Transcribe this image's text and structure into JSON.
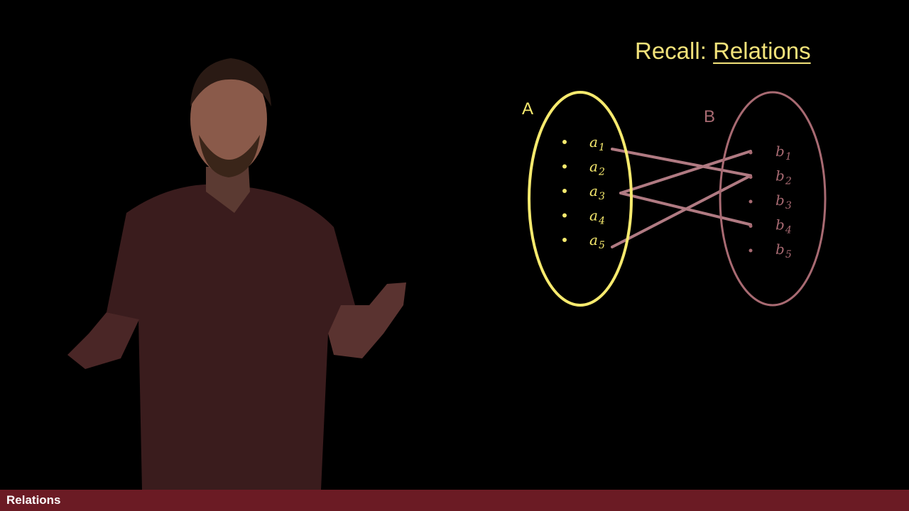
{
  "title": {
    "prefix": "Recall: ",
    "main": "Relations",
    "color": "#f2e27a"
  },
  "set_a": {
    "label": "A",
    "color": "#f7ea6e",
    "elements": [
      {
        "base": "a",
        "sub": "1"
      },
      {
        "base": "a",
        "sub": "2"
      },
      {
        "base": "a",
        "sub": "3"
      },
      {
        "base": "a",
        "sub": "4"
      },
      {
        "base": "a",
        "sub": "5"
      }
    ]
  },
  "set_b": {
    "label": "B",
    "color": "#a86a72",
    "elements": [
      {
        "base": "b",
        "sub": "1"
      },
      {
        "base": "b",
        "sub": "2"
      },
      {
        "base": "b",
        "sub": "3"
      },
      {
        "base": "b",
        "sub": "4"
      },
      {
        "base": "b",
        "sub": "5"
      }
    ]
  },
  "relation": {
    "color": "#b07a82",
    "pairs": [
      [
        "a1",
        "b2"
      ],
      [
        "a3",
        "b1"
      ],
      [
        "a3",
        "b4"
      ],
      [
        "a5",
        "b2"
      ]
    ]
  },
  "footer": {
    "label": "Relations",
    "bar_color": "#6b1b24"
  },
  "presenter": {
    "shirt_color": "#3a1c1d",
    "skin_color": "#8a5a4a"
  }
}
